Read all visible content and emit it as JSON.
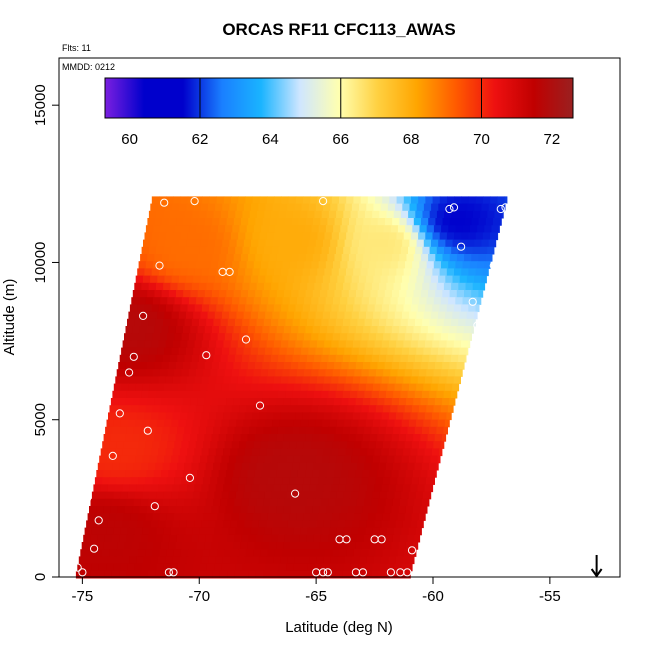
{
  "chart_data": {
    "type": "heatmap",
    "title": "ORCAS RF11 CFC113_AWAS",
    "flights_label": "Flts: 11",
    "date_label": "MMDD: 0212",
    "xlabel": "Latitude (deg N)",
    "ylabel": "Altitude (m)",
    "xlim": [
      -76,
      -52
    ],
    "ylim": [
      0,
      16500
    ],
    "x_ticks": [
      -75,
      -70,
      -65,
      -60,
      -55
    ],
    "x_tick_labels": [
      "-75",
      "-70",
      "-65",
      "-60",
      "-55"
    ],
    "y_ticks": [
      0,
      5000,
      10000,
      15000
    ],
    "y_tick_labels": [
      "0",
      "5000",
      "10000",
      "15000"
    ],
    "colorbar": {
      "min": 59.3,
      "max": 72.6,
      "ticks": [
        60,
        62,
        64,
        66,
        68,
        70,
        72
      ],
      "tick_labels": [
        "60",
        "62",
        "64",
        "66",
        "68",
        "70",
        "72"
      ],
      "colors": [
        "#7b1fe0",
        "#0000cc",
        "#0000cc",
        "#1a7fff",
        "#1ab4ff",
        "#cfe6ff",
        "#ffffb0",
        "#ffd040",
        "#ffa500",
        "#ff5a00",
        "#ee1010",
        "#c00000",
        "#9a2020"
      ]
    },
    "region": {
      "lat_bottom_left": -75.3,
      "lat_top_left": -72.0,
      "lat_top_right": -56.8,
      "lat_bottom_right": -61.0,
      "alt_top": 12100
    },
    "field_features": [
      {
        "lat": -59.0,
        "alt": 11300,
        "value": 61.5
      },
      {
        "lat": -62.0,
        "alt": 10600,
        "value": 66.5
      },
      {
        "lat": -66.0,
        "alt": 10700,
        "value": 68.0
      },
      {
        "lat": -70.5,
        "alt": 10500,
        "value": 69.0
      },
      {
        "lat": -73.0,
        "alt": 8000,
        "value": 71.8
      },
      {
        "lat": -66.0,
        "alt": 3200,
        "value": 71.8
      },
      {
        "lat": -73.5,
        "alt": 4000,
        "value": 70.0
      },
      {
        "lat": -74.0,
        "alt": 1500,
        "value": 71.6
      }
    ],
    "sample_points": [
      {
        "lat": -75.2,
        "alt": 300
      },
      {
        "lat": -75.0,
        "alt": 150
      },
      {
        "lat": -74.8,
        "alt": 2500
      },
      {
        "lat": -74.5,
        "alt": 900
      },
      {
        "lat": -74.3,
        "alt": 1800
      },
      {
        "lat": -74.2,
        "alt": 4900
      },
      {
        "lat": -73.7,
        "alt": 3850
      },
      {
        "lat": -73.7,
        "alt": 7300
      },
      {
        "lat": -73.4,
        "alt": 5200
      },
      {
        "lat": -73.3,
        "alt": 8200
      },
      {
        "lat": -73.0,
        "alt": 6500
      },
      {
        "lat": -72.8,
        "alt": 7000
      },
      {
        "lat": -72.4,
        "alt": 8300
      },
      {
        "lat": -72.2,
        "alt": 4650
      },
      {
        "lat": -71.9,
        "alt": 2250
      },
      {
        "lat": -71.7,
        "alt": 9900
      },
      {
        "lat": -71.5,
        "alt": 11900
      },
      {
        "lat": -71.3,
        "alt": 150
      },
      {
        "lat": -71.1,
        "alt": 150
      },
      {
        "lat": -70.4,
        "alt": 3150
      },
      {
        "lat": -70.2,
        "alt": 11950
      },
      {
        "lat": -69.7,
        "alt": 7050
      },
      {
        "lat": -69.0,
        "alt": 9700
      },
      {
        "lat": -68.7,
        "alt": 9700
      },
      {
        "lat": -68.0,
        "alt": 7550
      },
      {
        "lat": -67.4,
        "alt": 5450
      },
      {
        "lat": -65.9,
        "alt": 2650
      },
      {
        "lat": -65.0,
        "alt": 150
      },
      {
        "lat": -64.7,
        "alt": 150
      },
      {
        "lat": -64.5,
        "alt": 150
      },
      {
        "lat": -64.7,
        "alt": 11950
      },
      {
        "lat": -64.0,
        "alt": 1200
      },
      {
        "lat": -63.7,
        "alt": 1200
      },
      {
        "lat": -63.3,
        "alt": 150
      },
      {
        "lat": -63.0,
        "alt": 150
      },
      {
        "lat": -62.5,
        "alt": 1200
      },
      {
        "lat": -62.2,
        "alt": 1200
      },
      {
        "lat": -61.8,
        "alt": 150
      },
      {
        "lat": -61.4,
        "alt": 150
      },
      {
        "lat": -61.1,
        "alt": 150
      },
      {
        "lat": -60.9,
        "alt": 850
      },
      {
        "lat": -59.3,
        "alt": 11700
      },
      {
        "lat": -59.1,
        "alt": 11750
      },
      {
        "lat": -58.8,
        "alt": 10500
      },
      {
        "lat": -58.3,
        "alt": 8750
      },
      {
        "lat": -58.1,
        "alt": 8000
      },
      {
        "lat": -57.8,
        "alt": 8200
      },
      {
        "lat": -57.4,
        "alt": 9900
      },
      {
        "lat": -57.1,
        "alt": 11700
      },
      {
        "lat": -56.9,
        "alt": 11750
      }
    ],
    "arrow_marker": {
      "lat": -53.0,
      "alt_from": 700,
      "alt_to": 0
    },
    "grid": false,
    "legend": "colorbar top, inside plot"
  }
}
